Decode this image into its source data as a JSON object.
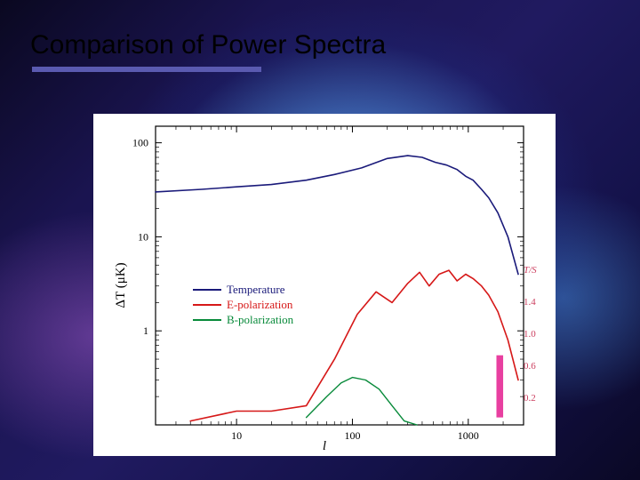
{
  "slide": {
    "title": "Comparison of Power Spectra",
    "underline_color": "#5a5ab0"
  },
  "chart": {
    "type": "line",
    "background_color": "#ffffff",
    "xlabel": "l",
    "ylabel": "ΔT (μK)",
    "label_fontsize": 15,
    "tick_fontsize": 12,
    "xscale": "log",
    "yscale": "log",
    "xlim": [
      2,
      3000
    ],
    "ylim": [
      0.1,
      150
    ],
    "xticks": [
      10,
      100,
      1000
    ],
    "yticks": [
      1,
      10,
      100
    ],
    "axis_color": "#000000",
    "series": {
      "temperature": {
        "label": "Temperature",
        "color": "#1a1a7a",
        "line_width": 1.6,
        "x": [
          2,
          5,
          10,
          20,
          40,
          70,
          120,
          200,
          300,
          400,
          520,
          650,
          800,
          950,
          1100,
          1300,
          1500,
          1800,
          2200,
          2700
        ],
        "y": [
          30,
          32,
          34,
          36,
          40,
          46,
          54,
          68,
          73,
          70,
          62,
          58,
          52,
          44,
          40,
          32,
          26,
          18,
          10,
          4
        ]
      },
      "e_polarization": {
        "label": "E-polarization",
        "color": "#d61818",
        "line_width": 1.6,
        "x": [
          4,
          10,
          20,
          40,
          70,
          110,
          160,
          220,
          300,
          380,
          460,
          560,
          680,
          800,
          950,
          1100,
          1300,
          1500,
          1800,
          2200,
          2700
        ],
        "y": [
          0.11,
          0.14,
          0.14,
          0.16,
          0.5,
          1.5,
          2.6,
          2.0,
          3.2,
          4.2,
          3.0,
          4.0,
          4.4,
          3.4,
          4.0,
          3.6,
          3.0,
          2.4,
          1.6,
          0.8,
          0.3
        ]
      },
      "b_polarization": {
        "label": "B-polarization",
        "color": "#088a3a",
        "line_width": 1.4,
        "x": [
          40,
          60,
          80,
          100,
          130,
          170,
          220,
          280,
          360
        ],
        "y": [
          0.12,
          0.2,
          0.28,
          0.32,
          0.3,
          0.24,
          0.16,
          0.11,
          0.1
        ]
      }
    },
    "legend": {
      "position": "left-center",
      "fontsize": 13,
      "items": [
        "temperature",
        "e_polarization",
        "b_polarization"
      ]
    },
    "ts_column": {
      "header": "T/S",
      "values": [
        "1.4",
        "1.0",
        "0.6",
        "0.2"
      ],
      "color": "#cc4060"
    },
    "highlight_box": {
      "color": "#e83fa0",
      "x_range": [
        1750,
        2000
      ],
      "y_range": [
        0.12,
        0.55
      ]
    }
  }
}
